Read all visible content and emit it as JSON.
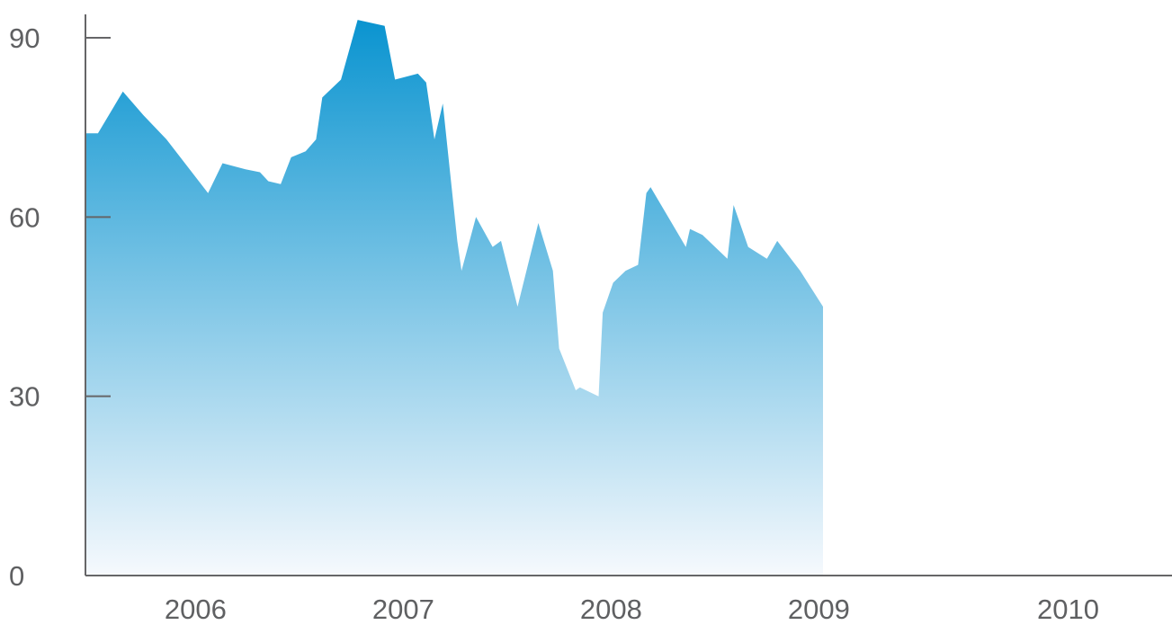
{
  "chart_data": {
    "type": "area",
    "title": "",
    "xlabel": "",
    "ylabel": "",
    "ylim": [
      0,
      93
    ],
    "xlim": [
      2005.35,
      2010.58
    ],
    "y_ticks": [
      {
        "value": 0,
        "label": "0"
      },
      {
        "value": 30,
        "label": "30"
      },
      {
        "value": 60,
        "label": "60"
      },
      {
        "value": 90,
        "label": "90"
      }
    ],
    "x_ticks": [
      {
        "value": 2005.88,
        "label": "2006"
      },
      {
        "value": 2006.88,
        "label": "2007"
      },
      {
        "value": 2007.88,
        "label": "2008"
      },
      {
        "value": 2008.88,
        "label": "2009"
      },
      {
        "value": 2010.08,
        "label": "2010"
      }
    ],
    "grid": false,
    "colors": {
      "fill_top": "#0a94d0",
      "fill_bottom": "#f6f9fd",
      "axis": "#666668",
      "tick_text": "#5f6062"
    },
    "series": [
      {
        "x": [
          2005.35,
          2005.41,
          2005.53,
          2005.63,
          2005.74,
          2005.94,
          2006.01,
          2006.12,
          2006.19,
          2006.23,
          2006.29,
          2006.34,
          2006.41,
          2006.46,
          2006.49,
          2006.58,
          2006.66,
          2006.79,
          2006.84,
          2006.95,
          2006.99,
          2007.03,
          2007.07,
          2007.14,
          2007.16,
          2007.23,
          2007.31,
          2007.35,
          2007.43,
          2007.53,
          2007.6,
          2007.63,
          2007.71,
          2007.73,
          2007.82,
          2007.84,
          2007.89,
          2007.95,
          2008.01,
          2008.04,
          2008.05,
          2008.07,
          2008.24,
          2008.26,
          2008.32,
          2008.44,
          2008.47,
          2008.54,
          2008.63,
          2008.68,
          2008.79,
          2008.9
        ],
        "y": [
          74,
          74,
          81,
          77,
          73,
          64,
          69,
          68,
          67.5,
          66,
          65.5,
          70,
          71,
          73,
          80,
          83,
          93,
          92,
          83,
          84,
          82.5,
          73,
          79,
          56,
          51,
          60,
          55,
          56,
          45,
          59,
          51,
          38,
          31,
          31.5,
          30,
          44,
          49,
          51,
          52,
          61,
          64,
          65,
          55,
          58,
          57,
          53,
          62,
          55,
          53,
          56,
          51,
          45
        ],
        "x_real": [
          2005.35,
          2005.41,
          2005.53,
          2005.63,
          2005.74,
          2005.94,
          2006.01,
          2006.12,
          2006.19,
          2006.23,
          2006.29,
          2006.34,
          2006.41,
          2006.46,
          2006.49,
          2006.58,
          2006.66,
          2006.79,
          2006.84,
          2006.95,
          2006.99,
          2007.03,
          2007.07,
          2007.14,
          2007.16,
          2007.23,
          2007.31,
          2007.35,
          2007.43,
          2007.53,
          2007.6,
          2007.63,
          2007.71,
          2007.73,
          2007.82,
          2007.84,
          2007.89,
          2007.95,
          2008.01,
          2008.04,
          2008.05,
          2008.07,
          2008.24,
          2008.26,
          2008.32,
          2008.44,
          2008.47,
          2008.54,
          2008.63,
          2008.68,
          2008.79,
          2008.9
        ]
      }
    ]
  }
}
